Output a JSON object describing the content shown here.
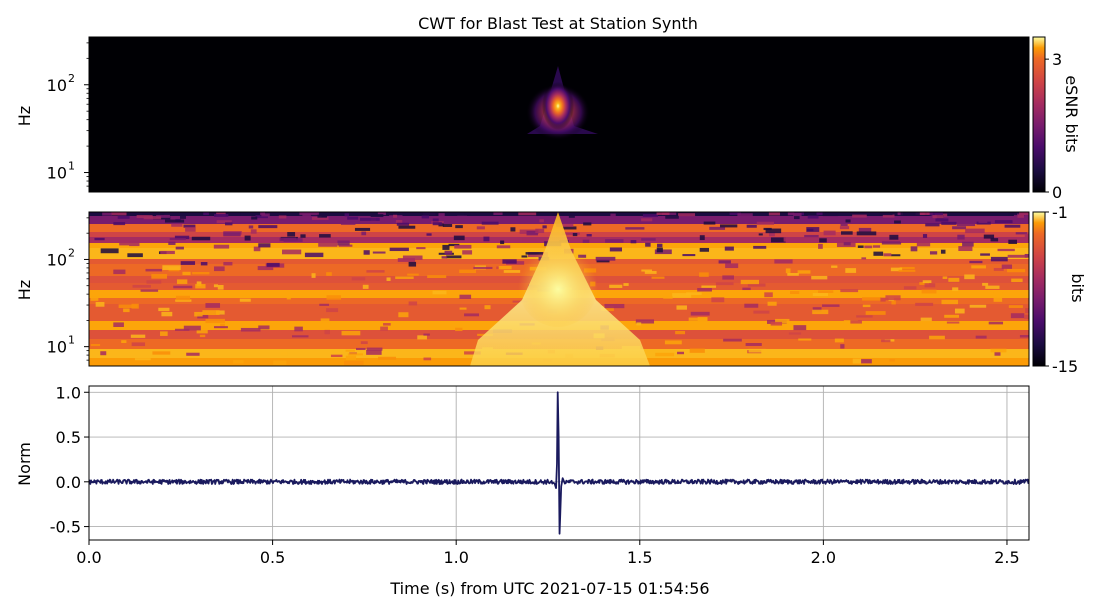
{
  "figure": {
    "title": "CWT for Blast Test at Station Synth",
    "xlabel": "Time (s) from UTC 2021-07-15 01:54:56"
  },
  "chart_data": [
    {
      "type": "heatmap",
      "panel": "esnr",
      "ylabel": "Hz",
      "yscale": "log",
      "ylim": [
        6,
        350
      ],
      "xlim": [
        0,
        2.56
      ],
      "yticks": [
        {
          "base": "10",
          "exp": "1"
        },
        {
          "base": "10",
          "exp": "2"
        }
      ],
      "colorbar": {
        "label": "eSNR bits",
        "ticks": [
          "3",
          "0"
        ],
        "range": [
          0,
          3.5
        ],
        "colormap": "inferno"
      },
      "feature": {
        "type": "transient",
        "time_s": 1.28,
        "peak_freq_hz": 60,
        "peak_value_bits": 3.5
      }
    },
    {
      "type": "heatmap",
      "panel": "power",
      "ylabel": "Hz",
      "yscale": "log",
      "ylim": [
        6,
        350
      ],
      "xlim": [
        0,
        2.56
      ],
      "yticks": [
        {
          "base": "10",
          "exp": "1"
        },
        {
          "base": "10",
          "exp": "2"
        }
      ],
      "colorbar": {
        "label": "bits",
        "ticks": [
          "-1",
          "-15"
        ],
        "range": [
          -15,
          -1
        ],
        "colormap": "inferno"
      },
      "feature": {
        "type": "transient",
        "time_s": 1.28,
        "peak_freq_hz": 50,
        "peak_value_bits": -1
      }
    },
    {
      "type": "line",
      "panel": "waveform",
      "ylabel": "Norm",
      "xlim": [
        0,
        2.56
      ],
      "ylim": [
        -0.65,
        1.07
      ],
      "xticks": [
        "0.0",
        "0.5",
        "1.0",
        "1.5",
        "2.0",
        "2.5"
      ],
      "yticks": [
        "1.0",
        "0.5",
        "0.0",
        "-0.5"
      ],
      "grid": true,
      "color": "#1a1a5e",
      "series": [
        {
          "x": [
            0,
            1.26,
            1.268,
            1.272,
            1.2745,
            1.2765,
            1.279,
            1.2815,
            1.2835,
            1.286,
            1.29,
            1.296,
            1.305,
            2.56
          ],
          "y": [
            0,
            0,
            -0.02,
            -0.07,
            0.2,
            1.0,
            0.5,
            -0.58,
            -0.35,
            -0.05,
            0.04,
            -0.02,
            0,
            0
          ],
          "noise_amplitude": 0.025
        }
      ]
    }
  ]
}
